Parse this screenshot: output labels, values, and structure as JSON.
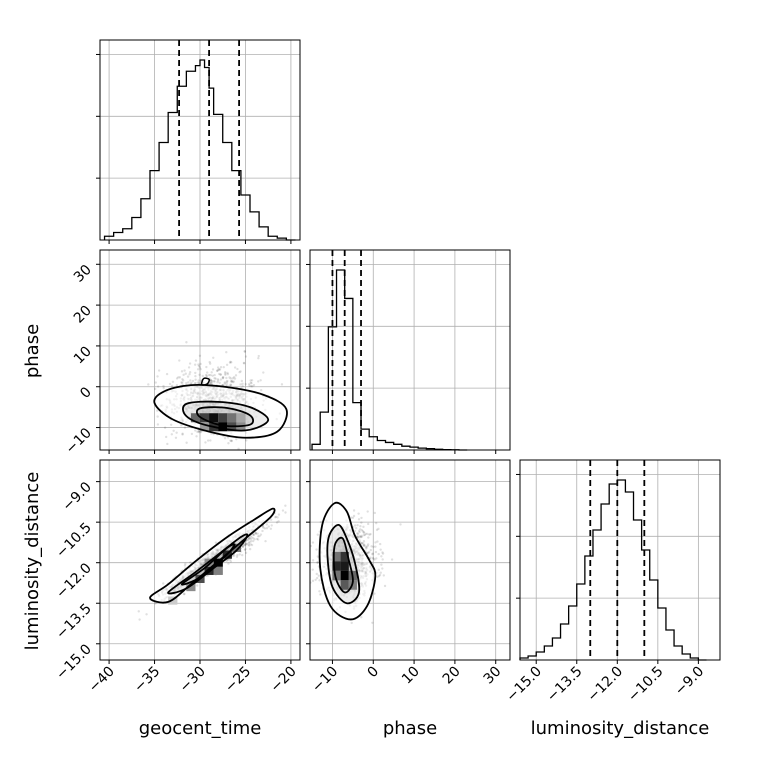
{
  "chart_data": {
    "type": "corner",
    "parameters": [
      "geocent_time",
      "phase",
      "luminosity_distance"
    ],
    "axis_labels": {
      "geocent_time": "geocent_time",
      "phase": "phase",
      "luminosity_distance": "luminosity_distance"
    },
    "ranges": {
      "geocent_time": [
        -41,
        -19
      ],
      "phase": [
        -15.5,
        33.5
      ],
      "luminosity_distance": [
        -15.6,
        -8.2
      ]
    },
    "ticks": {
      "geocent_time": [
        -40,
        -35,
        -30,
        -25,
        -20
      ],
      "phase": [
        -10,
        0,
        10,
        20,
        30
      ],
      "luminosity_distance": [
        -15.0,
        -13.5,
        -12.0,
        -10.5,
        -9.0
      ]
    },
    "tick_labels": {
      "geocent_time": [
        "−40",
        "−35",
        "−30",
        "−25",
        "−20"
      ],
      "phase": [
        "−10",
        "0",
        "10",
        "20",
        "30"
      ],
      "luminosity_distance": [
        "−15.0",
        "−13.5",
        "−12.0",
        "−10.5",
        "−9.0"
      ]
    },
    "quantiles": {
      "geocent_time": [
        -32.3,
        -29.0,
        -25.7
      ],
      "phase": [
        -10.0,
        -7.0,
        -3.0
      ],
      "luminosity_distance": [
        -13.0,
        -12.0,
        -11.0
      ]
    },
    "histograms": {
      "geocent_time": {
        "edges": [
          -40.5,
          -39.5,
          -38.5,
          -37.5,
          -36.5,
          -35.5,
          -34.5,
          -33.5,
          -32.5,
          -31.5,
          -30.5,
          -30.0,
          -29.5,
          -29.0,
          -28.5,
          -27.5,
          -26.5,
          -25.5,
          -24.5,
          -23.5,
          -22.5,
          -21.5,
          -20.5,
          -19.5
        ],
        "counts": [
          2,
          4,
          6,
          12,
          22,
          37,
          52,
          68,
          82,
          90,
          93,
          96,
          92,
          81,
          67,
          52,
          37,
          24,
          15,
          7,
          2,
          1,
          0
        ]
      },
      "phase": {
        "edges": [
          -15,
          -13,
          -11,
          -9,
          -7,
          -5,
          -3,
          -1,
          1,
          3,
          5,
          7,
          9,
          11,
          13,
          15,
          17,
          19,
          21,
          23
        ],
        "counts": [
          3,
          20,
          65,
          95,
          80,
          25,
          11,
          7,
          5,
          4,
          3,
          2,
          1.5,
          1,
          0.7,
          0.4,
          0.2,
          0.1,
          0
        ]
      },
      "luminosity_distance": {
        "edges": [
          -15.6,
          -15.3,
          -15.0,
          -14.7,
          -14.4,
          -14.1,
          -13.8,
          -13.5,
          -13.2,
          -12.9,
          -12.6,
          -12.3,
          -12.0,
          -11.7,
          -11.4,
          -11.1,
          -10.8,
          -10.5,
          -10.2,
          -9.9,
          -9.6,
          -9.3,
          -9.0,
          -8.7
        ],
        "counts": [
          1,
          2,
          4,
          7,
          11,
          18,
          27,
          38,
          52,
          65,
          78,
          88,
          90,
          84,
          70,
          55,
          40,
          26,
          15,
          7,
          3,
          1,
          0
        ]
      }
    },
    "joint": [
      {
        "x": "geocent_time",
        "y": "phase",
        "contours": [
          [
            [
              -34,
              -1.2
            ],
            [
              -31,
              0.4
            ],
            [
              -27,
              -0.1
            ],
            [
              -23,
              -2.0
            ],
            [
              -20.5,
              -5.5
            ],
            [
              -21.5,
              -11.0
            ],
            [
              -25,
              -12.5
            ],
            [
              -29,
              -11.0
            ],
            [
              -33,
              -8.0
            ],
            [
              -35,
              -4.0
            ]
          ],
          [
            [
              -31.5,
              -4.2
            ],
            [
              -28,
              -3.7
            ],
            [
              -24.5,
              -5.0
            ],
            [
              -22.5,
              -8.2
            ],
            [
              -25,
              -10.7
            ],
            [
              -29,
              -9.6
            ],
            [
              -31.5,
              -7.2
            ]
          ],
          [
            [
              -30,
              -5.3
            ],
            [
              -27,
              -5.2
            ],
            [
              -24.5,
              -7.0
            ],
            [
              -24.5,
              -9.3
            ],
            [
              -27.5,
              -9.5
            ],
            [
              -30,
              -7.4
            ]
          ]
        ],
        "blob": [
          [
            -29.8,
            0.5
          ],
          [
            -29.2,
            0.7
          ],
          [
            -29.0,
            1.8
          ],
          [
            -29.6,
            2.0
          ]
        ],
        "density": [
          {
            "x": -31.0,
            "y": -6.5,
            "w": 1.0,
            "h": 2.2,
            "v": 0.6
          },
          {
            "x": -30.0,
            "y": -6.5,
            "w": 1.0,
            "h": 2.2,
            "v": 0.75
          },
          {
            "x": -29.0,
            "y": -6.5,
            "w": 1.0,
            "h": 2.2,
            "v": 0.95
          },
          {
            "x": -28.0,
            "y": -6.5,
            "w": 1.0,
            "h": 2.2,
            "v": 0.75
          },
          {
            "x": -27.0,
            "y": -6.5,
            "w": 1.0,
            "h": 2.2,
            "v": 0.55
          },
          {
            "x": -29.0,
            "y": -8.7,
            "w": 1.0,
            "h": 2.2,
            "v": 0.8
          },
          {
            "x": -28.0,
            "y": -8.7,
            "w": 1.0,
            "h": 2.2,
            "v": 1.0
          },
          {
            "x": -27.0,
            "y": -8.7,
            "w": 1.0,
            "h": 2.2,
            "v": 0.7
          },
          {
            "x": -26.0,
            "y": -8.7,
            "w": 1.0,
            "h": 2.2,
            "v": 0.45
          },
          {
            "x": -30.0,
            "y": -8.7,
            "w": 1.0,
            "h": 2.2,
            "v": 0.4
          },
          {
            "x": -26.0,
            "y": -6.5,
            "w": 1.0,
            "h": 2.2,
            "v": 0.35
          }
        ],
        "scatter_center": [
          -28.5,
          -6.0
        ],
        "scatter_spread": [
          5.0,
          8.0
        ],
        "scatter_count": 900
      },
      {
        "x": "geocent_time",
        "y": "luminosity_distance",
        "contours": [
          [
            [
              -35.5,
              -13.3
            ],
            [
              -33.5,
              -12.8
            ],
            [
              -30.5,
              -11.95
            ],
            [
              -27,
              -11.05
            ],
            [
              -24,
              -10.4
            ],
            [
              -22,
              -10.0
            ],
            [
              -22.2,
              -10.3
            ],
            [
              -25,
              -11.1
            ],
            [
              -28,
              -11.95
            ],
            [
              -31,
              -12.8
            ],
            [
              -33.5,
              -13.45
            ]
          ],
          [
            [
              -33.5,
              -13.1
            ],
            [
              -30.5,
              -12.35
            ],
            [
              -28,
              -11.7
            ],
            [
              -25.5,
              -11.05
            ],
            [
              -24.8,
              -11.0
            ],
            [
              -26,
              -11.55
            ],
            [
              -28.5,
              -12.2
            ],
            [
              -31.5,
              -12.95
            ]
          ],
          [
            [
              -32.0,
              -12.8
            ],
            [
              -29.5,
              -12.2
            ],
            [
              -27.0,
              -11.45
            ],
            [
              -26.2,
              -11.35
            ],
            [
              -27.5,
              -11.85
            ],
            [
              -30,
              -12.55
            ]
          ]
        ],
        "density": [
          {
            "x": -33.5,
            "y": -13.25,
            "w": 1.0,
            "h": 0.3,
            "v": 0.2
          },
          {
            "x": -31.5,
            "y": -12.75,
            "w": 1.0,
            "h": 0.3,
            "v": 0.45
          },
          {
            "x": -30.5,
            "y": -12.45,
            "w": 1.0,
            "h": 0.3,
            "v": 0.7
          },
          {
            "x": -29.5,
            "y": -12.15,
            "w": 1.0,
            "h": 0.3,
            "v": 0.85
          },
          {
            "x": -28.5,
            "y": -11.85,
            "w": 1.0,
            "h": 0.3,
            "v": 1.0
          },
          {
            "x": -27.5,
            "y": -11.55,
            "w": 1.0,
            "h": 0.3,
            "v": 0.85
          },
          {
            "x": -26.5,
            "y": -11.3,
            "w": 1.0,
            "h": 0.3,
            "v": 0.55
          },
          {
            "x": -28.5,
            "y": -12.15,
            "w": 1.0,
            "h": 0.3,
            "v": 0.5
          },
          {
            "x": -29.5,
            "y": -11.85,
            "w": 1.0,
            "h": 0.3,
            "v": 0.45
          }
        ],
        "scatter_center": [
          -28.5,
          -11.9
        ],
        "scatter_spread": [
          5.5,
          1.3
        ],
        "scatter_correlation": 0.95,
        "scatter_count": 900
      },
      {
        "x": "phase",
        "y": "luminosity_distance",
        "contours": [
          [
            [
              -12.5,
              -10.6
            ],
            [
              -9.5,
              -9.8
            ],
            [
              -6.5,
              -10.1
            ],
            [
              -4.5,
              -11.0
            ],
            [
              -1.0,
              -11.9
            ],
            [
              0.5,
              -12.5
            ],
            [
              -1.5,
              -13.6
            ],
            [
              -5.5,
              -14.1
            ],
            [
              -10.5,
              -13.6
            ],
            [
              -13.0,
              -12.2
            ]
          ],
          [
            [
              -10.8,
              -11.0
            ],
            [
              -8.5,
              -10.6
            ],
            [
              -6.5,
              -11.1
            ],
            [
              -4.5,
              -12.0
            ],
            [
              -3.5,
              -13.1
            ],
            [
              -6.5,
              -13.5
            ],
            [
              -10.0,
              -12.9
            ],
            [
              -11.2,
              -11.8
            ]
          ],
          [
            [
              -9.5,
              -11.4
            ],
            [
              -7.5,
              -11.1
            ],
            [
              -6.0,
              -11.9
            ],
            [
              -5.0,
              -12.7
            ],
            [
              -7.0,
              -13.1
            ],
            [
              -9.3,
              -12.5
            ]
          ]
        ],
        "density": [
          {
            "x": -10.0,
            "y": -11.6,
            "w": 2.0,
            "h": 0.35,
            "v": 0.55
          },
          {
            "x": -8.0,
            "y": -11.6,
            "w": 2.0,
            "h": 0.35,
            "v": 0.8
          },
          {
            "x": -10.0,
            "y": -11.95,
            "w": 2.0,
            "h": 0.35,
            "v": 0.85
          },
          {
            "x": -8.0,
            "y": -11.95,
            "w": 2.0,
            "h": 0.35,
            "v": 0.9
          },
          {
            "x": -8.0,
            "y": -12.3,
            "w": 2.0,
            "h": 0.35,
            "v": 1.0
          },
          {
            "x": -6.0,
            "y": -12.3,
            "w": 2.0,
            "h": 0.35,
            "v": 0.6
          },
          {
            "x": -8.0,
            "y": -12.65,
            "w": 2.0,
            "h": 0.35,
            "v": 0.65
          },
          {
            "x": -6.0,
            "y": -12.65,
            "w": 2.0,
            "h": 0.35,
            "v": 0.5
          },
          {
            "x": -10.0,
            "y": -12.3,
            "w": 2.0,
            "h": 0.35,
            "v": 0.55
          }
        ],
        "scatter_center": [
          -6.0,
          -12.0
        ],
        "scatter_spread": [
          7.0,
          1.3
        ],
        "scatter_count": 900
      }
    ],
    "grid": true
  }
}
